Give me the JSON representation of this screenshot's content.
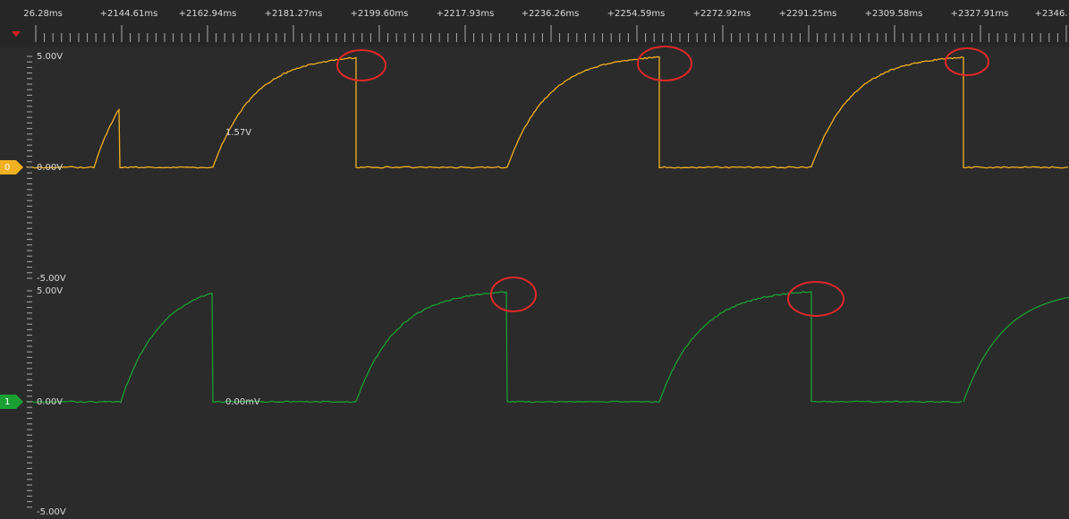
{
  "ruler": {
    "labels": [
      "26.28ms",
      "+2144.61ms",
      "+2162.94ms",
      "+2181.27ms",
      "+2199.60ms",
      "+2217.93ms",
      "+2236.26ms",
      "+2254.59ms",
      "+2272.92ms",
      "+2291.25ms",
      "+2309.58ms",
      "+2327.91ms",
      "+2346."
    ]
  },
  "channels": [
    {
      "id": "0",
      "top": "5.00V",
      "zero": "0.00V",
      "bottom": "-5.00V",
      "cursor": "1.57V"
    },
    {
      "id": "1",
      "top": "5.00V",
      "zero": "0.00V",
      "bottom": "-5.00V",
      "cursor": "0.00mV"
    }
  ]
}
